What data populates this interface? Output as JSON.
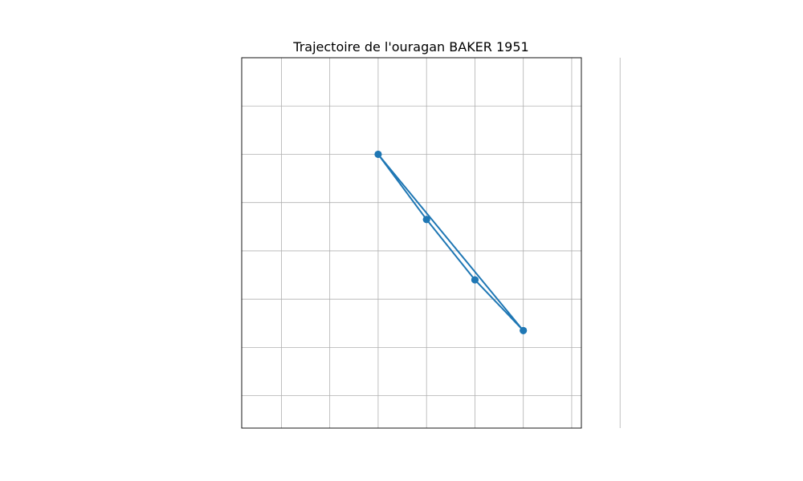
{
  "chart_data": {
    "type": "line",
    "title": "Trajectoire de l'ouragan BAKER 1951",
    "xlabel": "",
    "ylabel": "",
    "grid": true,
    "colors": {
      "series": "#1f77b4",
      "grid": "#b0b0b0",
      "frame": "#000000"
    },
    "x_gridlines": [
      -2,
      -1,
      0,
      1,
      2,
      3,
      4,
      5
    ],
    "y_gridlines": [
      0,
      1,
      2,
      3,
      4,
      5,
      6,
      7
    ],
    "xlim": [
      -2.82,
      4.2
    ],
    "ylim": [
      -0.67,
      7.0
    ],
    "series": [
      {
        "x": [
          0,
          1,
          2,
          3,
          0,
          1,
          2,
          3
        ],
        "y": [
          5,
          3.65,
          2.4,
          1.35,
          5,
          3.65,
          2.4,
          1.35
        ]
      }
    ]
  }
}
